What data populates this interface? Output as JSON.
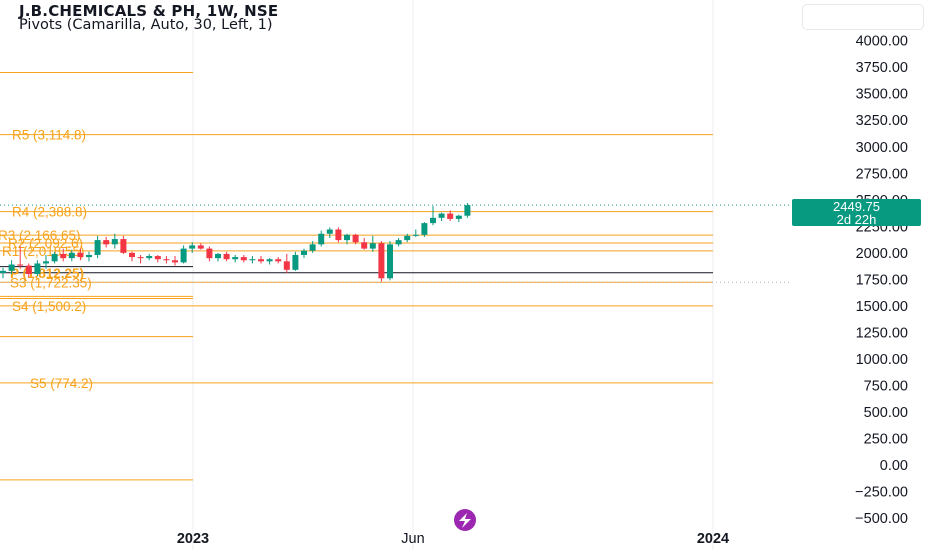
{
  "header": {
    "title": "J.B.CHEMICALS & PH, 1W, NSE",
    "indicator": "Pivots (Camarilla, Auto, 30, Left, 1)"
  },
  "last_price": {
    "value": "2449.75",
    "countdown": "2d 22h",
    "color": "#089981"
  },
  "colors": {
    "up": "#089981",
    "down": "#f23645",
    "pivot": "#f7a21b",
    "pivot_main": "#131722",
    "grid": "#eceef2",
    "badge": "#9c27b0"
  },
  "badge_icon": "lightning-icon",
  "chart_data": {
    "type": "candlestick",
    "y_axis": {
      "ticks": [
        4000,
        3750,
        3500,
        3250,
        3000,
        2750,
        2500,
        2250,
        2000,
        1750,
        1500,
        1250,
        1000,
        750,
        500,
        250,
        0,
        -250,
        -500
      ],
      "tick_labels": [
        "4000.00",
        "3750.00",
        "3500.00",
        "3250.00",
        "3000.00",
        "2750.00",
        "2500.00",
        "2250.00",
        "2000.00",
        "1750.00",
        "1500.00",
        "1250.00",
        "1000.00",
        "750.00",
        "500.00",
        "250.00",
        "0.00",
        "−250.00",
        "−500.00"
      ],
      "ylim": [
        -555,
        4290
      ]
    },
    "x_axis": {
      "tick_labels": [
        "2023",
        "Jun",
        "2024"
      ]
    },
    "pivot_levels": [
      {
        "label": "R5 (3,114.8)",
        "value": 3114.8
      },
      {
        "label": "R4 (2,388.8)",
        "value": 2388.8
      },
      {
        "label": "R3 (2,166.65)",
        "value": 2166.65
      },
      {
        "label": "R2 (2,092.6)",
        "value": 2092.6
      },
      {
        "label": "R1 (2,018.55)",
        "value": 2018.55
      },
      {
        "label": "P (1,812.25)",
        "value": 1812.25
      },
      {
        "label": "S3 (1,722.35)",
        "value": 1722.35
      },
      {
        "label": "S4 (1,500.2)",
        "value": 1500.2
      },
      {
        "label": "S5 (774.2)",
        "value": 774.2
      }
    ],
    "prior_pivot_levels": [
      3700,
      1870,
      1590,
      1570,
      1210,
      -140
    ],
    "candles": [
      {
        "o": 1810,
        "h": 1860,
        "l": 1760,
        "c": 1830
      },
      {
        "o": 1830,
        "h": 1930,
        "l": 1800,
        "c": 1890
      },
      {
        "o": 1890,
        "h": 2060,
        "l": 1850,
        "c": 1880
      },
      {
        "o": 1880,
        "h": 1900,
        "l": 1770,
        "c": 1800
      },
      {
        "o": 1800,
        "h": 1930,
        "l": 1780,
        "c": 1900
      },
      {
        "o": 1900,
        "h": 1980,
        "l": 1850,
        "c": 1920
      },
      {
        "o": 1920,
        "h": 2010,
        "l": 1900,
        "c": 1990
      },
      {
        "o": 1990,
        "h": 2040,
        "l": 1920,
        "c": 1950
      },
      {
        "o": 1950,
        "h": 2030,
        "l": 1920,
        "c": 2000
      },
      {
        "o": 2000,
        "h": 2040,
        "l": 1930,
        "c": 1960
      },
      {
        "o": 1960,
        "h": 2010,
        "l": 1920,
        "c": 1980
      },
      {
        "o": 1980,
        "h": 2160,
        "l": 1950,
        "c": 2120
      },
      {
        "o": 2120,
        "h": 2150,
        "l": 2050,
        "c": 2080
      },
      {
        "o": 2080,
        "h": 2180,
        "l": 2040,
        "c": 2130
      },
      {
        "o": 2130,
        "h": 2160,
        "l": 1990,
        "c": 2000
      },
      {
        "o": 2000,
        "h": 2010,
        "l": 1920,
        "c": 1960
      },
      {
        "o": 1960,
        "h": 1980,
        "l": 1900,
        "c": 1950
      },
      {
        "o": 1950,
        "h": 1990,
        "l": 1930,
        "c": 1970
      },
      {
        "o": 1970,
        "h": 1980,
        "l": 1910,
        "c": 1940
      },
      {
        "o": 1940,
        "h": 1970,
        "l": 1900,
        "c": 1930
      },
      {
        "o": 1930,
        "h": 1970,
        "l": 1880,
        "c": 1910
      },
      {
        "o": 1910,
        "h": 2070,
        "l": 1900,
        "c": 2040
      },
      {
        "o": 2040,
        "h": 2100,
        "l": 2000,
        "c": 2070
      },
      {
        "o": 2070,
        "h": 2090,
        "l": 2030,
        "c": 2040
      },
      {
        "o": 2040,
        "h": 2060,
        "l": 1920,
        "c": 1950
      },
      {
        "o": 1950,
        "h": 2000,
        "l": 1920,
        "c": 1990
      },
      {
        "o": 1990,
        "h": 2010,
        "l": 1920,
        "c": 1940
      },
      {
        "o": 1940,
        "h": 1980,
        "l": 1910,
        "c": 1960
      },
      {
        "o": 1960,
        "h": 1980,
        "l": 1910,
        "c": 1930
      },
      {
        "o": 1930,
        "h": 1970,
        "l": 1900,
        "c": 1940
      },
      {
        "o": 1940,
        "h": 1970,
        "l": 1900,
        "c": 1920
      },
      {
        "o": 1920,
        "h": 1950,
        "l": 1890,
        "c": 1940
      },
      {
        "o": 1940,
        "h": 1960,
        "l": 1900,
        "c": 1920
      },
      {
        "o": 1920,
        "h": 1990,
        "l": 1810,
        "c": 1840
      },
      {
        "o": 1840,
        "h": 2010,
        "l": 1830,
        "c": 1980
      },
      {
        "o": 1980,
        "h": 2040,
        "l": 1950,
        "c": 2020
      },
      {
        "o": 2020,
        "h": 2110,
        "l": 2000,
        "c": 2080
      },
      {
        "o": 2080,
        "h": 2210,
        "l": 2060,
        "c": 2180
      },
      {
        "o": 2180,
        "h": 2240,
        "l": 2140,
        "c": 2220
      },
      {
        "o": 2220,
        "h": 2240,
        "l": 2100,
        "c": 2120
      },
      {
        "o": 2120,
        "h": 2180,
        "l": 2080,
        "c": 2170
      },
      {
        "o": 2170,
        "h": 2180,
        "l": 2080,
        "c": 2100
      },
      {
        "o": 2100,
        "h": 2140,
        "l": 2030,
        "c": 2040
      },
      {
        "o": 2040,
        "h": 2160,
        "l": 2010,
        "c": 2090
      },
      {
        "o": 2090,
        "h": 2110,
        "l": 1730,
        "c": 1760
      },
      {
        "o": 1760,
        "h": 2110,
        "l": 1740,
        "c": 2080
      },
      {
        "o": 2080,
        "h": 2140,
        "l": 2060,
        "c": 2120
      },
      {
        "o": 2120,
        "h": 2180,
        "l": 2100,
        "c": 2160
      },
      {
        "o": 2160,
        "h": 2220,
        "l": 2150,
        "c": 2170
      },
      {
        "o": 2170,
        "h": 2290,
        "l": 2150,
        "c": 2280
      },
      {
        "o": 2280,
        "h": 2440,
        "l": 2260,
        "c": 2330
      },
      {
        "o": 2330,
        "h": 2380,
        "l": 2300,
        "c": 2370
      },
      {
        "o": 2370,
        "h": 2400,
        "l": 2300,
        "c": 2320
      },
      {
        "o": 2320,
        "h": 2360,
        "l": 2290,
        "c": 2350
      },
      {
        "o": 2350,
        "h": 2470,
        "l": 2330,
        "c": 2449.75
      }
    ]
  }
}
